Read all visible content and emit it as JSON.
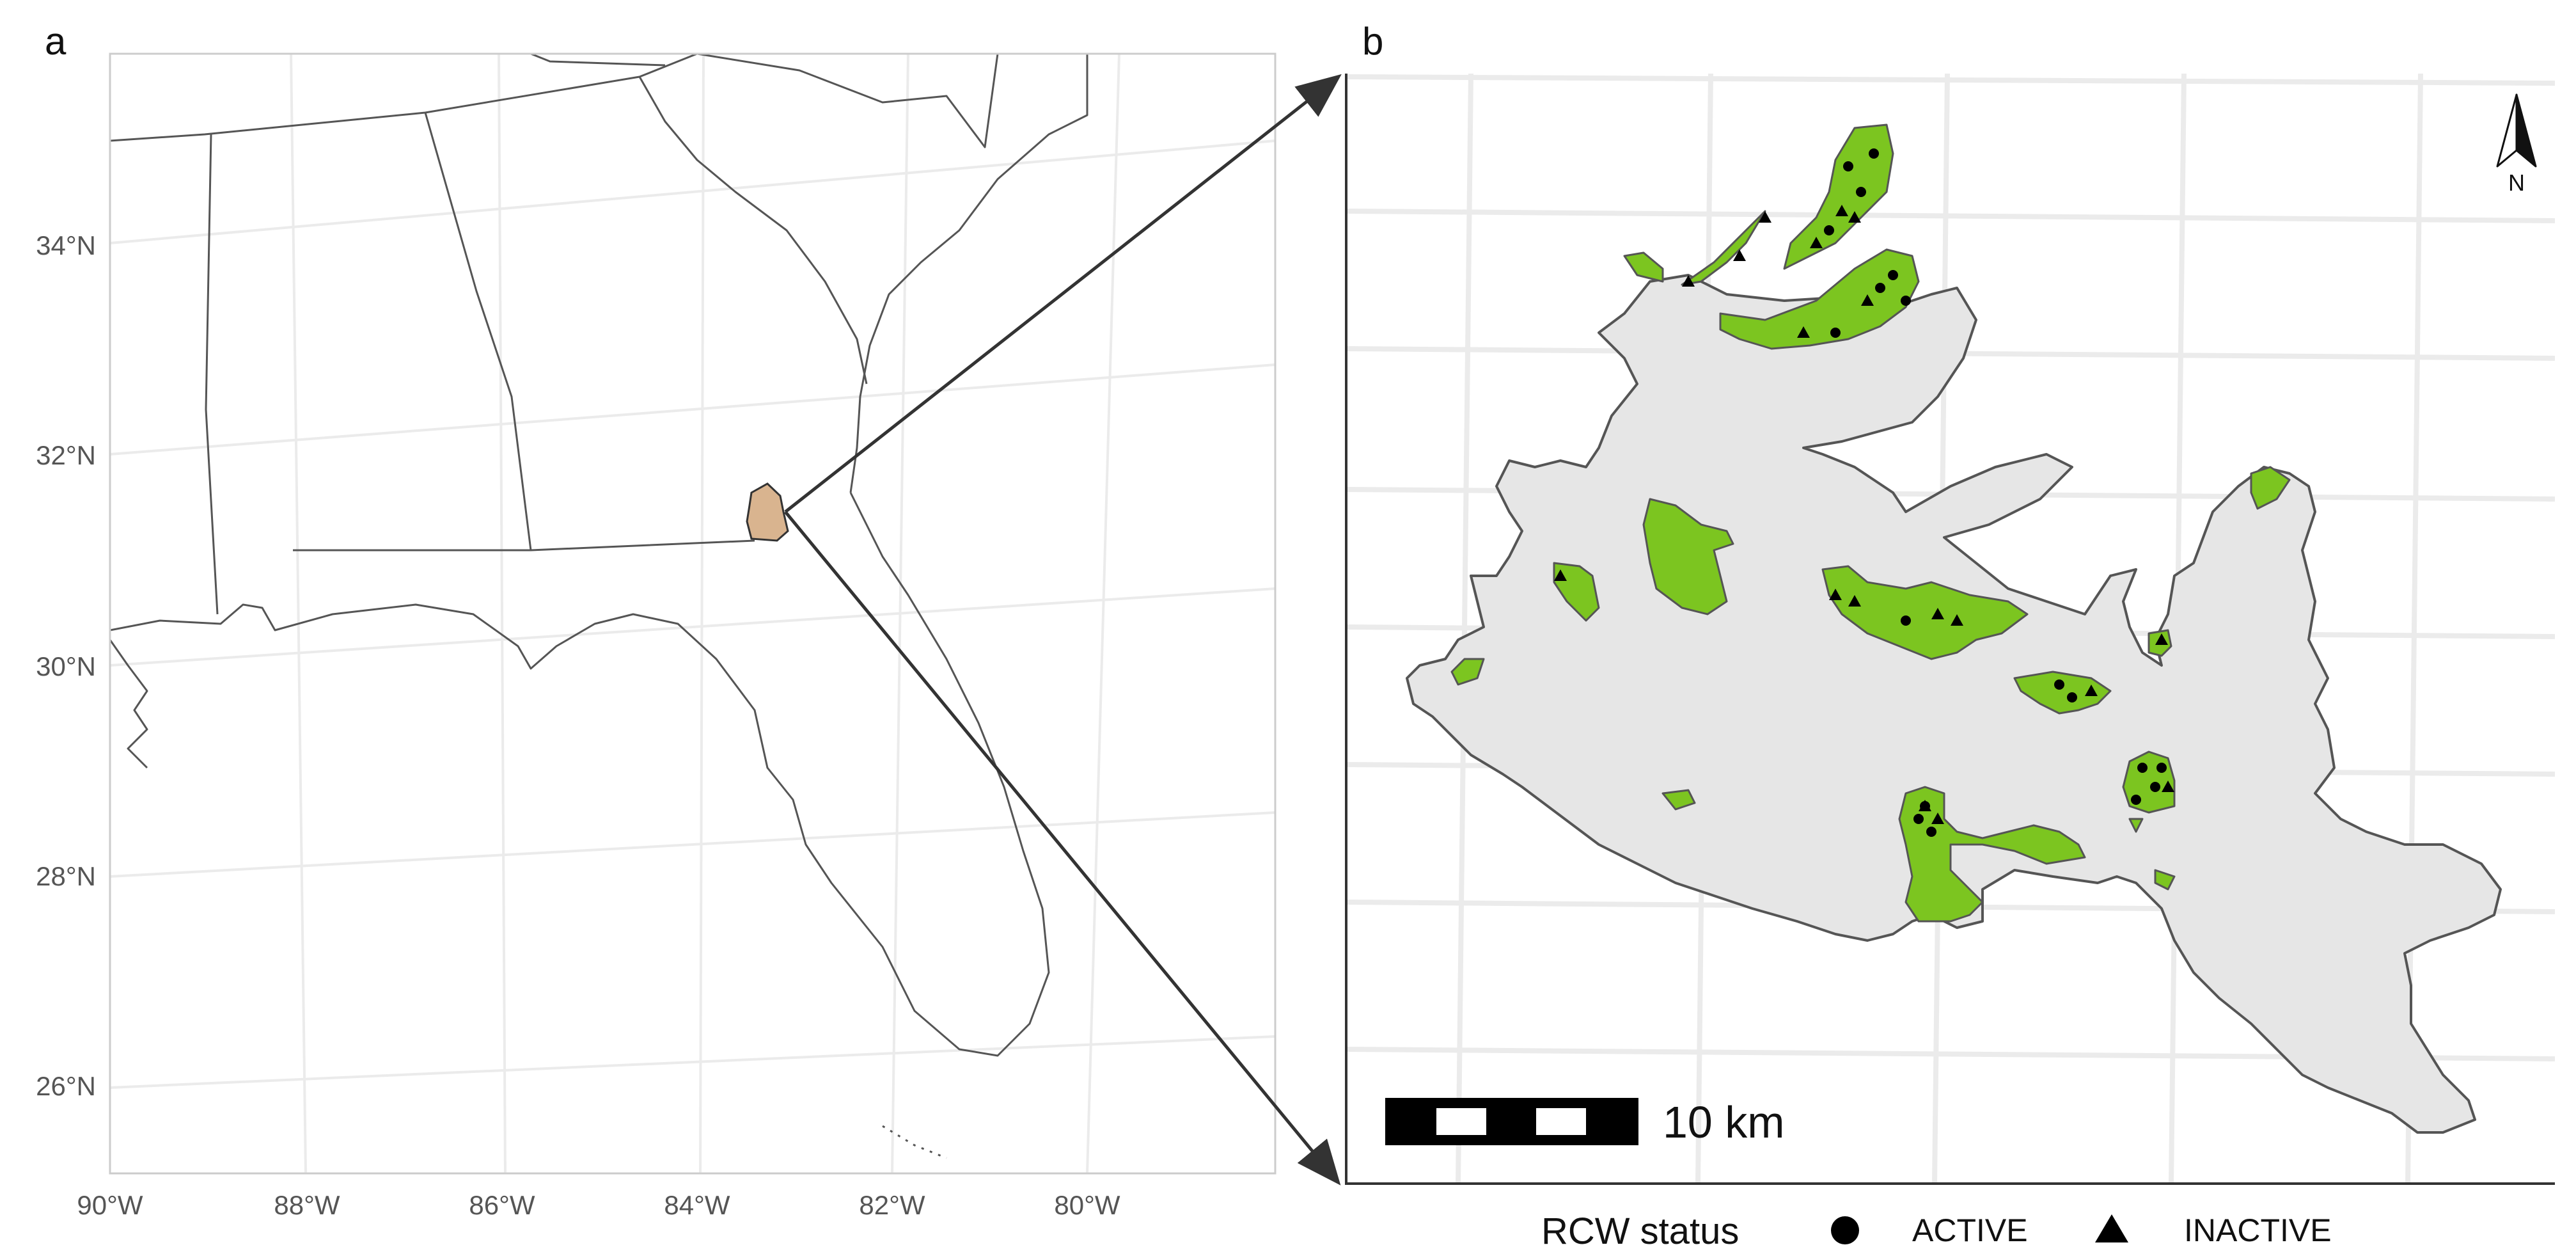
{
  "panels": {
    "a": "a",
    "b": "b"
  },
  "map_a": {
    "lat_ticks": [
      "34°N",
      "32°N",
      "30°N",
      "28°N",
      "26°N"
    ],
    "lon_ticks": [
      "90°W",
      "88°W",
      "86°W",
      "84°W",
      "82°W",
      "80°W"
    ]
  },
  "map_b": {
    "north_label": "N",
    "scale_label": "10 km"
  },
  "legend": {
    "title": "RCW status",
    "items": [
      {
        "label": "ACTIVE",
        "symbol": "circle"
      },
      {
        "label": "INACTIVE",
        "symbol": "triangle"
      }
    ]
  },
  "colors": {
    "study_area_inset": "#d9b48f",
    "refuge": "#e6e6e6",
    "habitat": "#7cc520",
    "grid": "#ebebeb",
    "outline": "#555555"
  }
}
